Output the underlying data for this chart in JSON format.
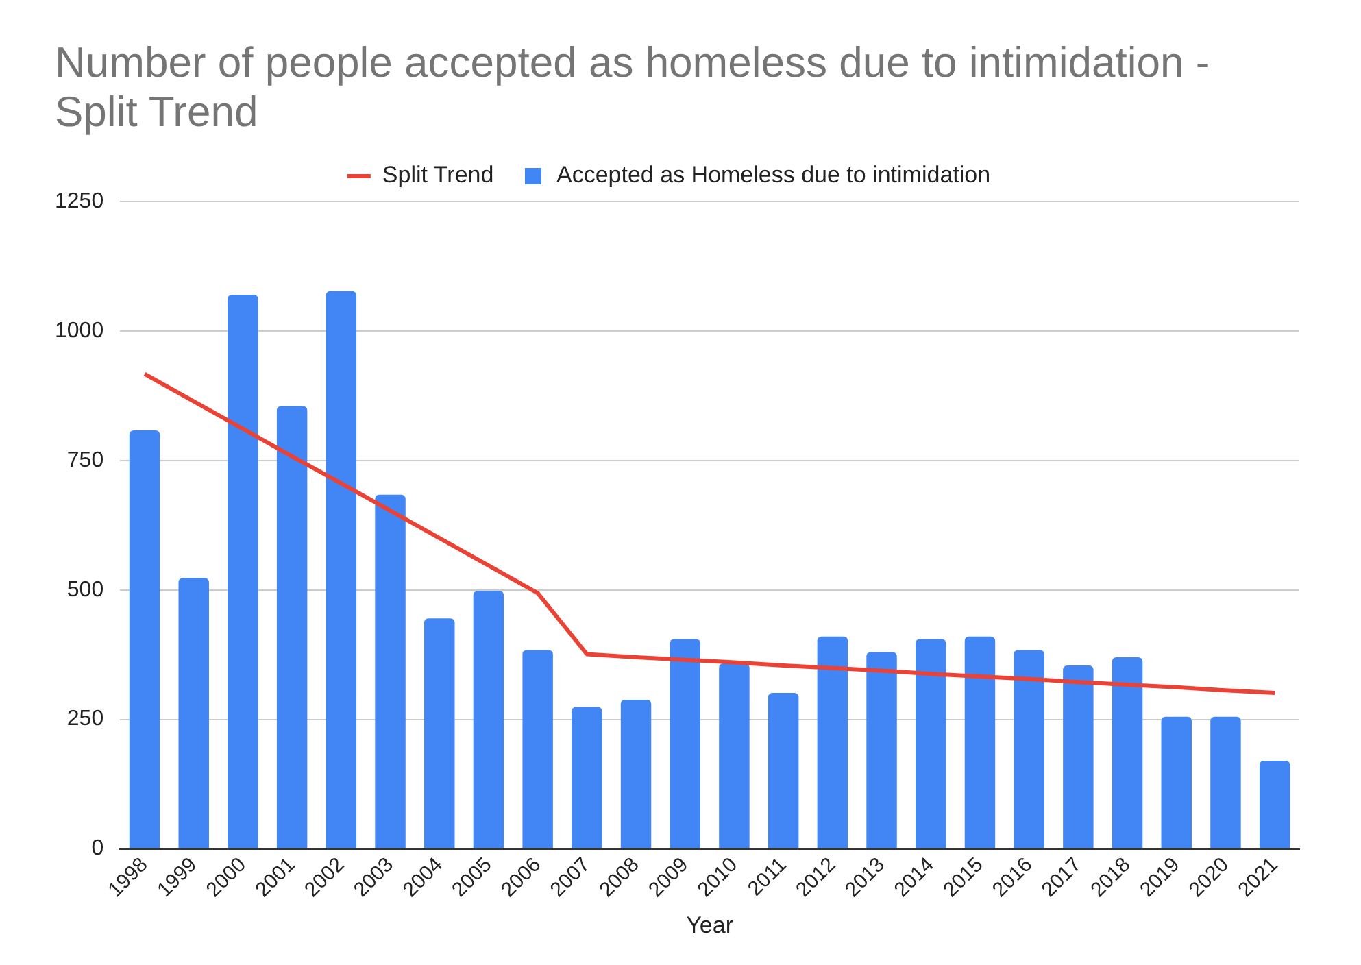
{
  "chart_data": {
    "type": "bar",
    "title": "Number of people accepted as homeless due to intimidation - Split Trend",
    "xlabel": "Year",
    "categories": [
      "1998",
      "1999",
      "2000",
      "2001",
      "2002",
      "2003",
      "2004",
      "2005",
      "2006",
      "2007",
      "2008",
      "2009",
      "2010",
      "2011",
      "2012",
      "2013",
      "2014",
      "2015",
      "2016",
      "2017",
      "2018",
      "2019",
      "2020",
      "2021"
    ],
    "series": [
      {
        "name": "Accepted as Homeless due to intimidation",
        "color": "#4285f4",
        "values": [
          808,
          523,
          1070,
          855,
          1077,
          684,
          445,
          498,
          384,
          274,
          288,
          405,
          358,
          301,
          410,
          380,
          405,
          410,
          384,
          354,
          370,
          255,
          255,
          170
        ]
      },
      {
        "name": "Split Trend",
        "type": "line",
        "color": "#ea4335",
        "values": [
          917,
          864,
          811,
          758,
          706,
          653,
          600,
          547,
          494,
          376,
          370,
          365,
          360,
          354,
          349,
          344,
          338,
          333,
          328,
          322,
          317,
          312,
          306,
          301
        ]
      }
    ],
    "ylim": [
      0,
      1250
    ],
    "yticks": [
      0,
      250,
      500,
      750,
      1000,
      1250
    ],
    "grid": "y",
    "legend": "top",
    "marker": "none"
  }
}
